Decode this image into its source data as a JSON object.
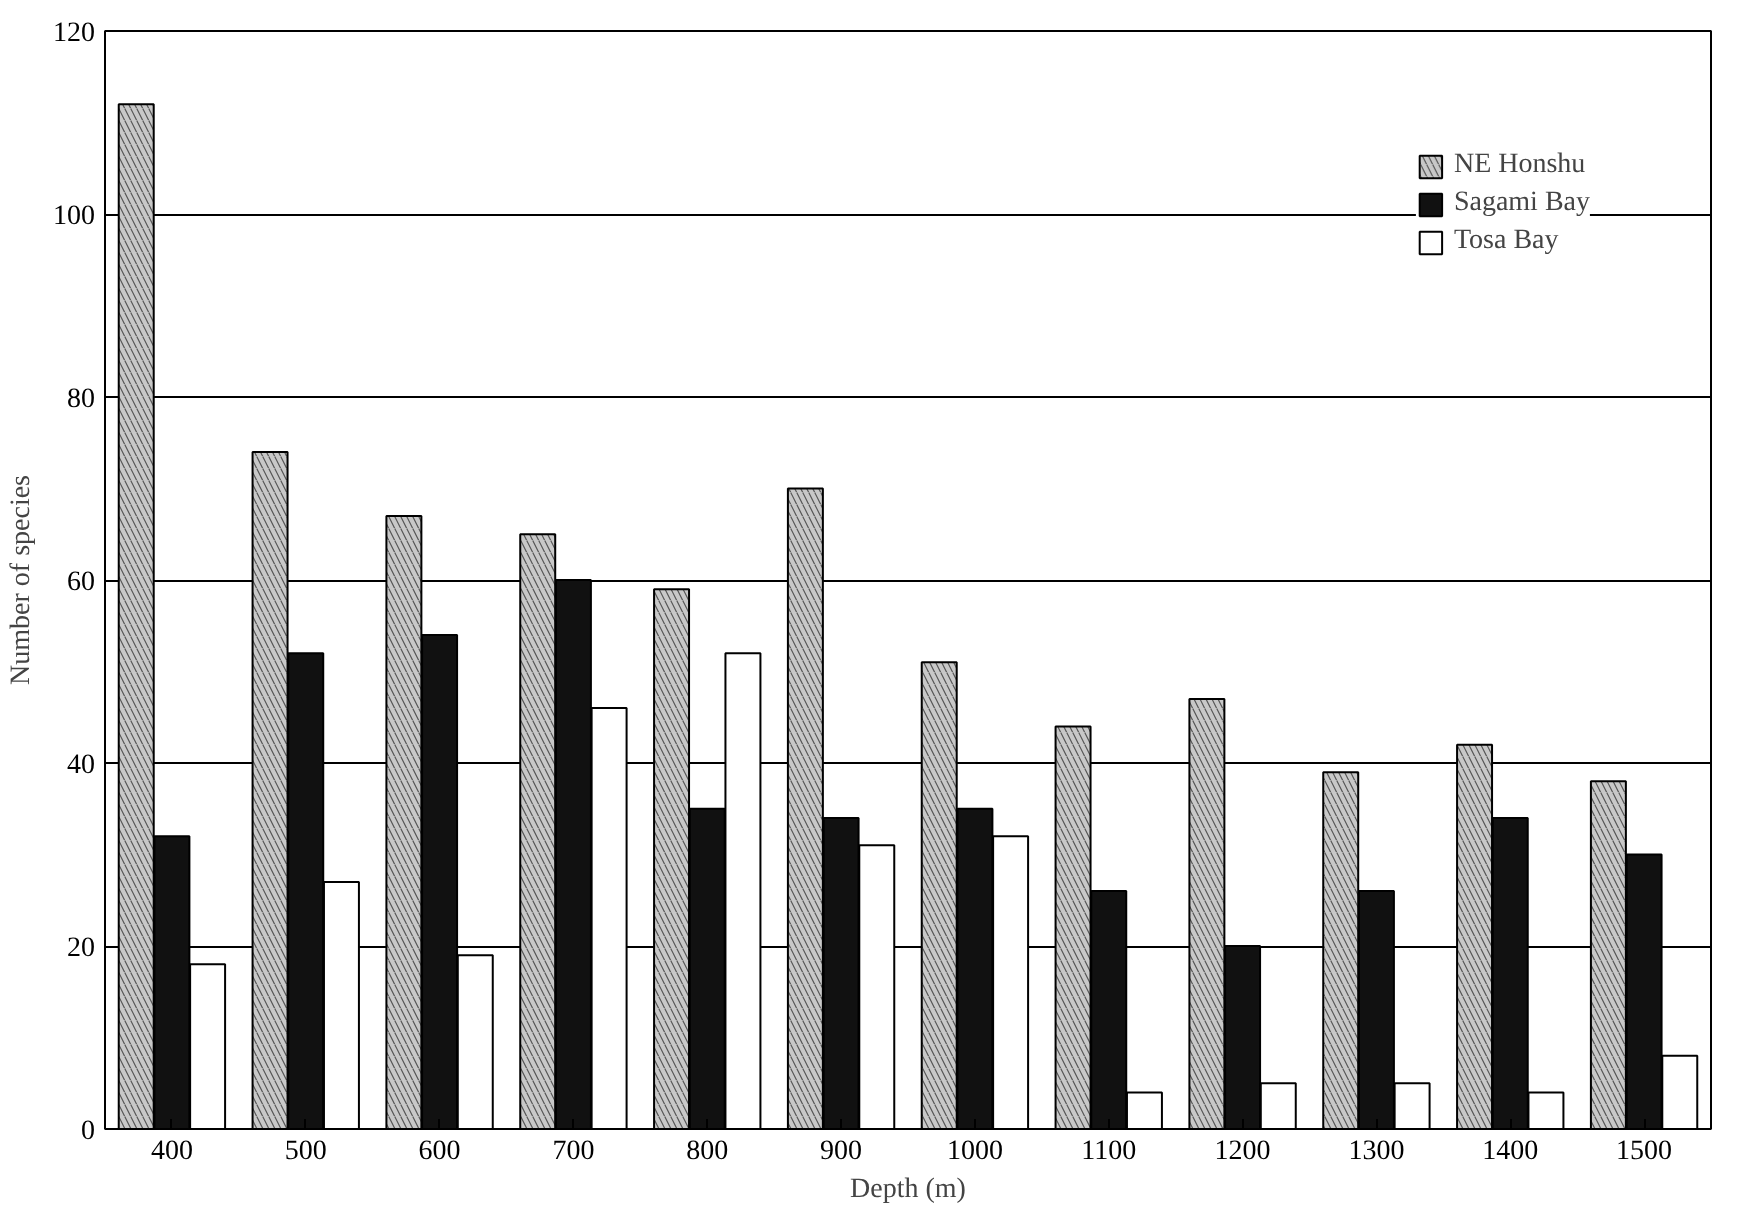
{
  "chart_data": {
    "type": "bar",
    "xlabel": "Depth (m)",
    "ylabel": "Number of species",
    "categories": [
      "400",
      "500",
      "600",
      "700",
      "800",
      "900",
      "1000",
      "1100",
      "1200",
      "1300",
      "1400",
      "1500"
    ],
    "series": [
      {
        "name": "NE Honshu",
        "color": "#c8c8c8",
        "values": [
          112,
          74,
          67,
          65,
          59,
          70,
          51,
          44,
          47,
          39,
          42,
          38
        ]
      },
      {
        "name": "Sagami Bay",
        "color": "#111111",
        "values": [
          32,
          52,
          54,
          60,
          35,
          34,
          35,
          26,
          20,
          26,
          34,
          30
        ]
      },
      {
        "name": "Tosa Bay",
        "color": "#ffffff",
        "values": [
          18,
          27,
          19,
          46,
          52,
          31,
          32,
          4,
          5,
          5,
          4,
          8
        ]
      }
    ],
    "ylim": [
      0,
      120
    ],
    "yticks": [
      0,
      20,
      40,
      60,
      80,
      100,
      120
    ],
    "grid": "y",
    "legend": "top right"
  }
}
